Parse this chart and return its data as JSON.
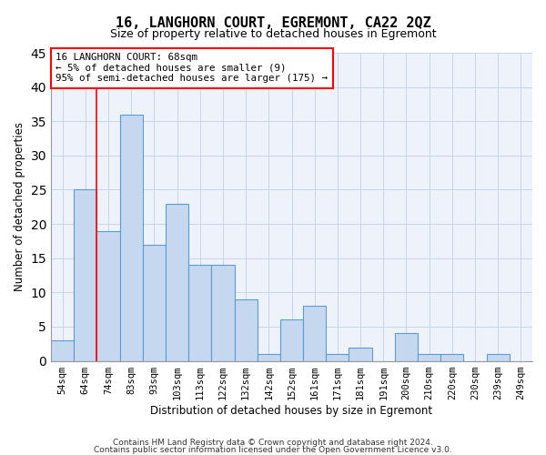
{
  "title": "16, LANGHORN COURT, EGREMONT, CA22 2QZ",
  "subtitle": "Size of property relative to detached houses in Egremont",
  "xlabel": "Distribution of detached houses by size in Egremont",
  "ylabel": "Number of detached properties",
  "categories": [
    "54sqm",
    "64sqm",
    "74sqm",
    "83sqm",
    "93sqm",
    "103sqm",
    "113sqm",
    "122sqm",
    "132sqm",
    "142sqm",
    "152sqm",
    "161sqm",
    "171sqm",
    "181sqm",
    "191sqm",
    "200sqm",
    "210sqm",
    "220sqm",
    "230sqm",
    "239sqm",
    "249sqm"
  ],
  "values": [
    3,
    25,
    19,
    36,
    17,
    23,
    14,
    14,
    9,
    1,
    6,
    8,
    1,
    2,
    0,
    4,
    1,
    1,
    0,
    1,
    0
  ],
  "bar_color": "#c5d8f0",
  "bar_edge_color": "#5b9bd5",
  "ylim": [
    0,
    45
  ],
  "yticks": [
    0,
    5,
    10,
    15,
    20,
    25,
    30,
    35,
    40,
    45
  ],
  "red_line_x": 1.5,
  "annotation_text": "16 LANGHORN COURT: 68sqm\n← 5% of detached houses are smaller (9)\n95% of semi-detached houses are larger (175) →",
  "footer_line1": "Contains HM Land Registry data © Crown copyright and database right 2024.",
  "footer_line2": "Contains public sector information licensed under the Open Government Licence v3.0.",
  "grid_color": "#c8d4e8",
  "axes_background": "#eef2fa"
}
